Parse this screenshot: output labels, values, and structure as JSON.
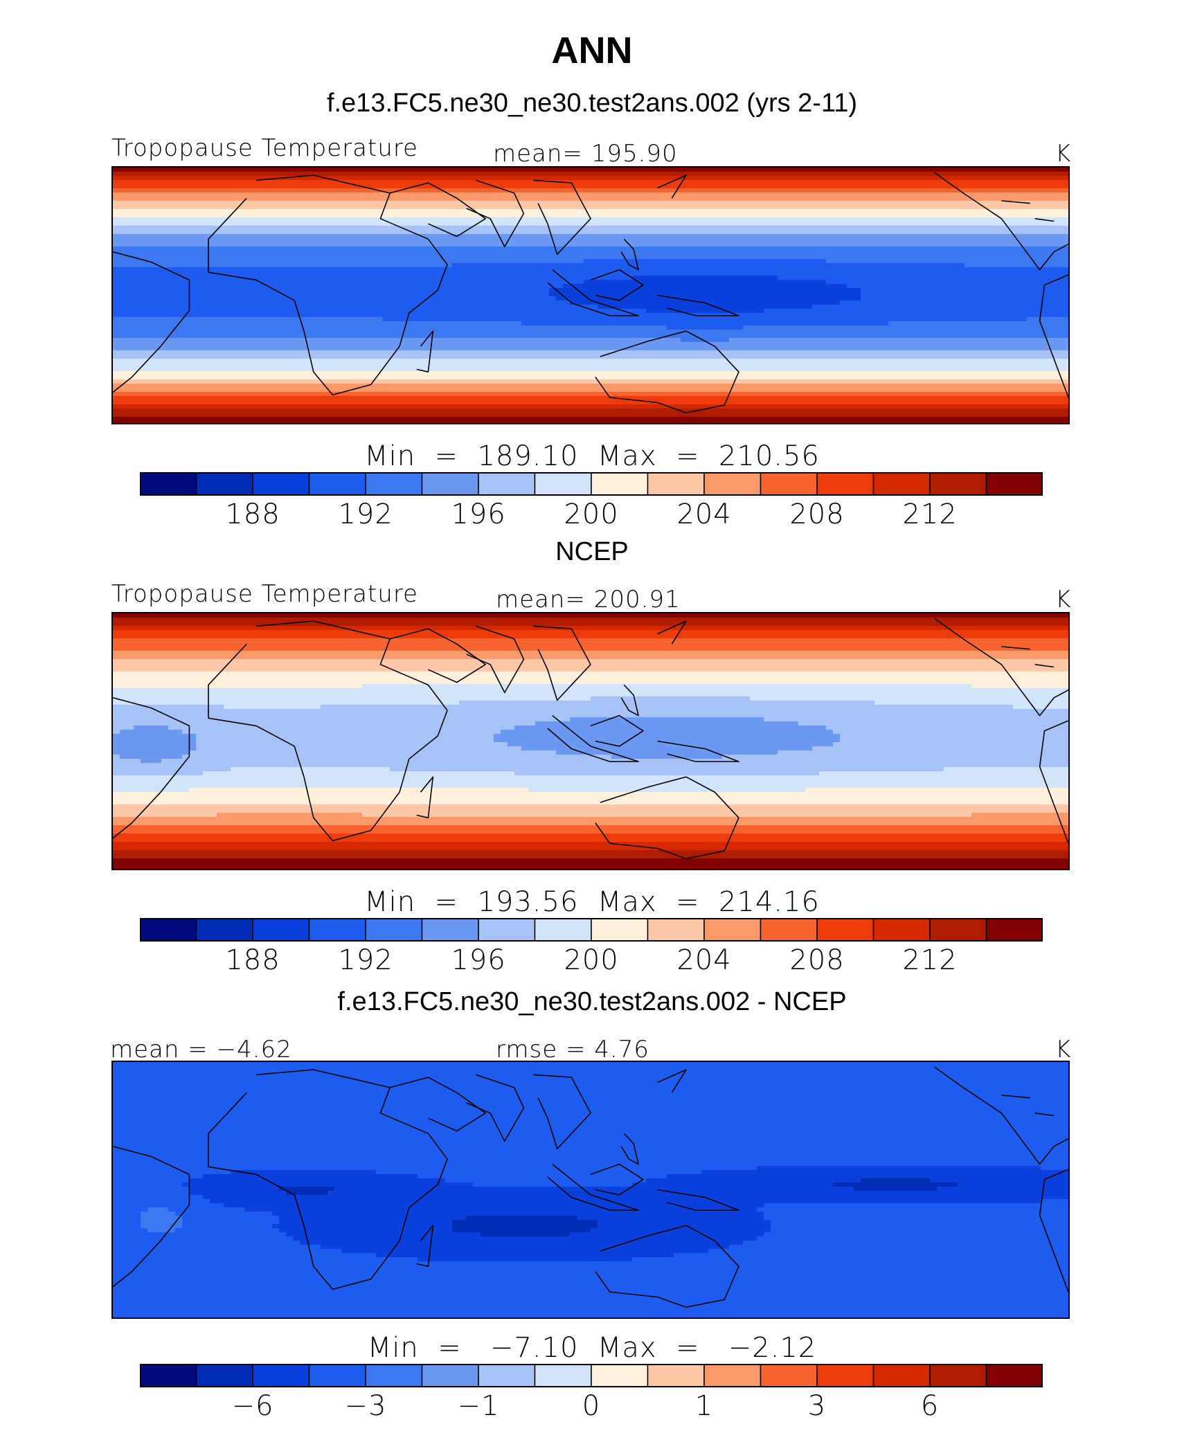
{
  "title": "ANN",
  "colors": [
    "#000c7d",
    "#002cb6",
    "#0a40dc",
    "#1e5cf0",
    "#3c78f0",
    "#6a98f2",
    "#a6c2f6",
    "#d2e4fa",
    "#fff0dc",
    "#fcc8a8",
    "#fa9a6a",
    "#f86430",
    "#ec3c0c",
    "#d42800",
    "#b01c00",
    "#820000"
  ],
  "panels": [
    {
      "title": "f.e13.FC5.ne30_ne30.test2ans.002 (yrs 2-11)",
      "left_label": "Tropopause Temperature",
      "center_label": "mean=  195.90",
      "right_label": "K",
      "minmax": "Min  =  189.10  Max  =  210.56",
      "colorbar_ticks": [
        "188",
        "192",
        "196",
        "200",
        "204",
        "208",
        "212"
      ],
      "field": "model"
    },
    {
      "title": "NCEP",
      "left_label": "Tropopause Temperature",
      "center_label": "mean=  200.91",
      "right_label": "K",
      "minmax": "Min  =  193.56  Max  =  214.16",
      "colorbar_ticks": [
        "188",
        "192",
        "196",
        "200",
        "204",
        "208",
        "212"
      ],
      "field": "obs"
    },
    {
      "title": "f.e13.FC5.ne30_ne30.test2ans.002 - NCEP",
      "left_label": "mean =   −4.62",
      "center_label": "rmse =    4.76",
      "right_label": "K",
      "minmax": "Min  =   −7.10  Max  =   −2.12",
      "colorbar_ticks": [
        "−6",
        "−3",
        "−1",
        "0",
        "1",
        "3",
        "6"
      ],
      "field": "diff"
    }
  ]
}
